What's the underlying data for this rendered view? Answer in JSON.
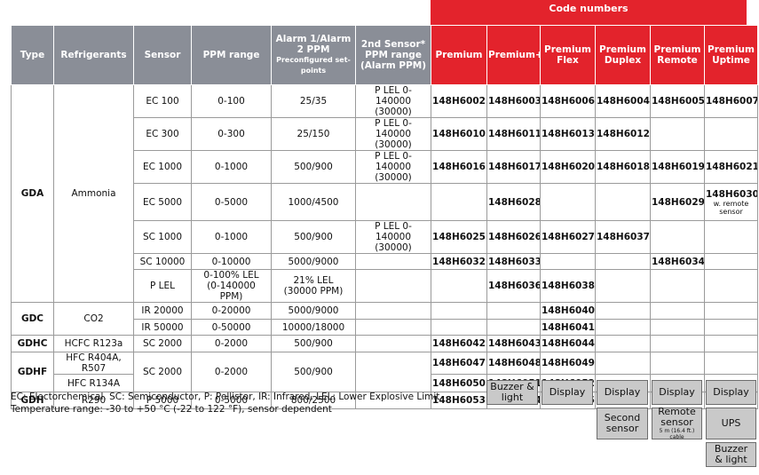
{
  "code_numbers_title": "Code numbers",
  "table": {
    "header": [
      "Type",
      "Refrigerants",
      "Sensor",
      "PPM range",
      "Alarm 1/Alarm 2 PPM",
      "2nd Sensor* PPM range (Alarm PPM)",
      "Premium",
      "Premium+",
      "Premium Flex",
      "Premium Duplex",
      "Premium Remote",
      "Premium Uptime"
    ],
    "header_alarm_note": "Preconfigured set-points",
    "rows": [
      {
        "type": "GDA",
        "refrigerant": "Ammonia",
        "sensor": "EC 100",
        "ppm": "0-100",
        "alarm": "25/35",
        "second": "P LEL 0-140000 (30000)",
        "codes": {
          "premium": "148H6002",
          "premium_plus": "148H6003",
          "flex": "148H6006",
          "duplex": "148H6004",
          "remote": "148H6005",
          "uptime": "148H6007"
        }
      },
      {
        "sensor": "EC 300",
        "ppm": "0-300",
        "alarm": "25/150",
        "second": "P LEL 0-140000 (30000)",
        "codes": {
          "premium": "148H6010",
          "premium_plus": "148H6011",
          "flex": "148H6013",
          "duplex": "148H6012"
        }
      },
      {
        "sensor": "EC 1000",
        "ppm": "0-1000",
        "alarm": "500/900",
        "second": "P LEL 0-140000 (30000)",
        "codes": {
          "premium": "148H6016",
          "premium_plus": "148H6017",
          "flex": "148H6020",
          "duplex": "148H6018",
          "remote": "148H6019",
          "uptime": "148H6021"
        }
      },
      {
        "sensor": "EC 5000",
        "ppm": "0-5000",
        "alarm": "1000/4500",
        "codes": {
          "premium_plus": "148H6028",
          "remote": "148H6029",
          "uptime": "148H6030"
        },
        "uptime_note": "w. remote sensor"
      },
      {
        "sensor": "SC 1000",
        "ppm": "0-1000",
        "alarm": "500/900",
        "second": "P LEL 0-140000 (30000)",
        "codes": {
          "premium": "148H6025",
          "premium_plus": "148H6026",
          "flex": "148H6027",
          "duplex": "148H6037"
        }
      },
      {
        "sensor": "SC 10000",
        "ppm": "0-10000",
        "alarm": "5000/9000",
        "codes": {
          "premium": "148H6032",
          "premium_plus": "148H6033",
          "remote": "148H6034"
        }
      },
      {
        "sensor": "P LEL",
        "ppm": "0-100% LEL (0-140000 PPM)",
        "alarm": "21% LEL (30000 PPM)",
        "codes": {
          "premium_plus": "148H6036",
          "flex": "148H6038"
        }
      },
      {
        "type": "GDC",
        "refrigerant": "CO2",
        "sensor": "IR 20000",
        "ppm": "0-20000",
        "alarm": "5000/9000",
        "codes": {
          "flex": "148H6040"
        }
      },
      {
        "sensor": "IR 50000",
        "ppm": "0-50000",
        "alarm": "10000/18000",
        "codes": {
          "flex": "148H6041"
        }
      },
      {
        "type": "GDHC",
        "refrigerant": "HCFC R123a",
        "sensor": "SC 2000",
        "ppm": "0-2000",
        "alarm": "500/900",
        "codes": {
          "premium": "148H6042",
          "premium_plus": "148H6043",
          "flex": "148H6044"
        }
      },
      {
        "type": "GDHF",
        "refrigerant": "HFC R404A, R507",
        "sensor": "SC 2000",
        "ppm": "0-2000",
        "alarm": "500/900",
        "codes": {
          "premium": "148H6047",
          "premium_plus": "148H6048",
          "flex": "148H6049"
        }
      },
      {
        "refrigerant": "HFC R134A",
        "codes": {
          "premium": "148H6050",
          "premium_plus": "148H6051",
          "flex": "148H6052"
        }
      },
      {
        "type": "GDH",
        "refrigerant": "R290",
        "sensor": "P 5000",
        "ppm": "0-5000",
        "alarm": "800/2500",
        "codes": {
          "premium": "148H6053",
          "premium_plus": "148H6054",
          "flex": "148H6055"
        }
      }
    ]
  },
  "notes": [
    "EC: Electorchemical, SC: Semiconductor, P: Pellistor, IR: Infrared, LEL: Lower Explosive Limit",
    "Temperature range: -30 to +50 °C (-22 to 122 °F), sensor dependent"
  ],
  "features": {
    "premium_plus": [
      "Buzzer & light"
    ],
    "flex": [
      "Display"
    ],
    "duplex": [
      "Display",
      "Second sensor"
    ],
    "remote": [
      "Display",
      "Remote sensor"
    ],
    "remote_note": "5 m (16.4 ft.) cable",
    "uptime": [
      "Display",
      "UPS",
      "Buzzer & light"
    ]
  }
}
